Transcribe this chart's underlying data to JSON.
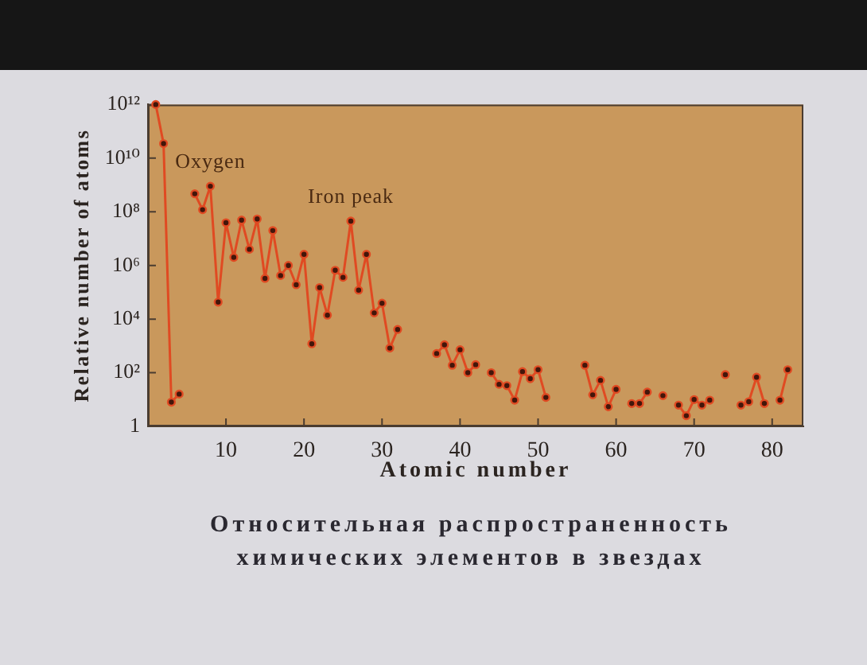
{
  "chart_data": {
    "type": "line",
    "title": "Относительная распространенность химических элементов в звездах",
    "xlabel": "Atomic number",
    "ylabel": "Relative number of atoms",
    "x": [
      1,
      2,
      3,
      4,
      5,
      6,
      7,
      8,
      9,
      10,
      11,
      12,
      13,
      14,
      15,
      16,
      17,
      18,
      19,
      20,
      21,
      22,
      23,
      24,
      25,
      26,
      27,
      28,
      29,
      30,
      31,
      32,
      33,
      34,
      35,
      36,
      37,
      38,
      39,
      40,
      41,
      42,
      43,
      44,
      45,
      46,
      47,
      48,
      49,
      50,
      51,
      52,
      53,
      54,
      55,
      56,
      57,
      58,
      59,
      60,
      61,
      62,
      63,
      64,
      65,
      66,
      67,
      68,
      69,
      70,
      71,
      72,
      73,
      74,
      75,
      76,
      77,
      78,
      79,
      80,
      81,
      82
    ],
    "values": [
      1000000000000,
      35000000000,
      8,
      16,
      null,
      470000000,
      120000000,
      900000000,
      43000,
      39000000,
      2000000,
      49000000,
      4000000,
      54000000,
      330000,
      20000000,
      420000,
      1000000,
      190000,
      2600000,
      1200,
      150000,
      14000,
      660000,
      360000,
      45000000,
      120000,
      2600000,
      17000,
      39000,
      830,
      4100,
      null,
      null,
      null,
      null,
      520,
      1100,
      190,
      720,
      100,
      200,
      null,
      100,
      37,
      33,
      9.5,
      110,
      60,
      130,
      12,
      null,
      null,
      null,
      null,
      190,
      15,
      52,
      5.4,
      24,
      null,
      7.1,
      7.1,
      19,
      null,
      14,
      null,
      6.2,
      2.5,
      10,
      6.2,
      9.5,
      null,
      85,
      null,
      6.2,
      8.3,
      68,
      7.1,
      null,
      9.5,
      130
    ],
    "color": "#e04a22",
    "marker": "circle",
    "line_style": "solid",
    "log": "y",
    "xlim": [
      0,
      84
    ],
    "xticks": [
      10,
      20,
      30,
      40,
      50,
      60,
      70,
      80
    ],
    "ylim": [
      1,
      1000000000000
    ],
    "yticks": [
      1,
      {
        "value": 100,
        "label": "10²"
      },
      {
        "value": 10000,
        "label": "10⁴"
      },
      {
        "value": 1000000,
        "label": "10⁶"
      },
      {
        "value": 100000000,
        "label": "10⁸"
      },
      {
        "value": 10000000000,
        "label": "10¹⁰"
      },
      {
        "value": 1000000000000,
        "label": "10¹²"
      }
    ],
    "annotations": [
      {
        "text": "Oxygen",
        "x": 8,
        "y": 900000000
      },
      {
        "text": "Iron peak",
        "x": 26,
        "y": 45000000
      }
    ]
  }
}
